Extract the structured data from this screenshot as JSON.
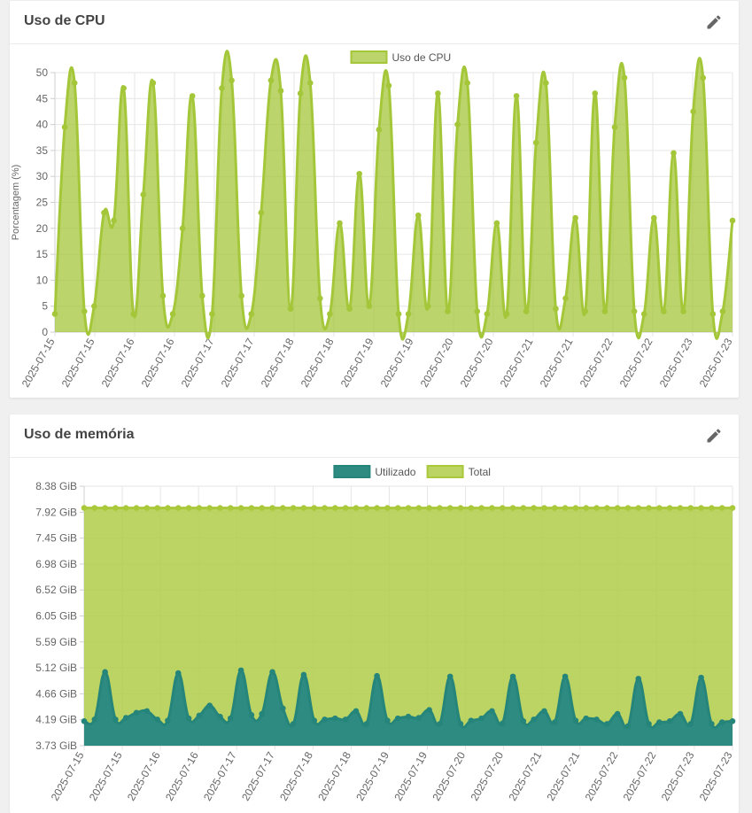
{
  "cpu_card": {
    "title": "Uso de CPU",
    "edit_icon": "pencil-icon"
  },
  "memory_card": {
    "title": "Uso de memória",
    "edit_icon": "pencil-icon"
  },
  "colors": {
    "cpu_line": "#a4c639",
    "cpu_fill": "rgba(164,198,57,0.75)",
    "mem_used_line": "#25857a",
    "mem_used_fill": "#2e8b82",
    "mem_total_line": "#a9c83a",
    "mem_total_fill": "rgba(176,204,72,0.85)"
  },
  "chart_data": [
    {
      "type": "area",
      "legend": [
        "Uso de CPU"
      ],
      "legend_position": "top",
      "ylabel": "Porcentagem (%)",
      "ylim": [
        0,
        50
      ],
      "yticks": [
        "0",
        "5",
        "10",
        "15",
        "20",
        "25",
        "30",
        "35",
        "40",
        "45",
        "50"
      ],
      "xticks": [
        "2025-07-15",
        "2025-07-15",
        "2025-07-16",
        "2025-07-16",
        "2025-07-17",
        "2025-07-17",
        "2025-07-18",
        "2025-07-18",
        "2025-07-19",
        "2025-07-19",
        "2025-07-20",
        "2025-07-20",
        "2025-07-21",
        "2025-07-21",
        "2025-07-22",
        "2025-07-22",
        "2025-07-23",
        "2025-07-23"
      ],
      "grid": true,
      "series": [
        {
          "name": "Uso de CPU",
          "values": [
            3.5,
            39.5,
            48,
            4,
            5,
            23,
            21.5,
            47,
            3.5,
            26.5,
            48,
            7,
            3.5,
            20,
            45.5,
            7,
            3.5,
            47,
            48.5,
            7,
            3.5,
            23,
            48.5,
            46.5,
            4.5,
            46,
            48,
            6.5,
            3.5,
            21,
            4.5,
            30.5,
            5,
            39,
            47.5,
            3.5,
            3.5,
            22.5,
            5,
            46,
            4,
            40,
            48,
            4,
            3.5,
            21,
            3.5,
            45.5,
            4,
            36.5,
            48,
            4.5,
            6.5,
            22,
            4,
            46,
            4,
            39.5,
            49,
            4,
            3.5,
            22,
            4,
            34.5,
            4,
            42.5,
            49,
            3.5,
            4,
            21.5
          ]
        }
      ]
    },
    {
      "type": "area",
      "legend": [
        "Utilizado",
        "Total"
      ],
      "legend_position": "top",
      "ylim": [
        3.73,
        8.38
      ],
      "yticks": [
        "3.73 GiB",
        "4.19 GiB",
        "4.66 GiB",
        "5.12 GiB",
        "5.59 GiB",
        "6.05 GiB",
        "6.52 GiB",
        "6.98 GiB",
        "7.45 GiB",
        "7.92 GiB",
        "8.38 GiB"
      ],
      "xticks": [
        "2025-07-15",
        "2025-07-15",
        "2025-07-16",
        "2025-07-16",
        "2025-07-17",
        "2025-07-17",
        "2025-07-18",
        "2025-07-18",
        "2025-07-19",
        "2025-07-19",
        "2025-07-20",
        "2025-07-20",
        "2025-07-21",
        "2025-07-21",
        "2025-07-22",
        "2025-07-22",
        "2025-07-23",
        "2025-07-23"
      ],
      "grid": true,
      "series": [
        {
          "name": "Utilizado",
          "values": [
            4.17,
            4.2,
            5.05,
            4.2,
            4.23,
            4.32,
            4.35,
            4.2,
            4.18,
            5.03,
            4.22,
            4.27,
            4.45,
            4.25,
            4.22,
            5.08,
            4.28,
            4.3,
            5.05,
            4.4,
            4.12,
            5.0,
            4.18,
            4.2,
            4.22,
            4.2,
            4.35,
            4.12,
            4.98,
            4.18,
            4.22,
            4.25,
            4.23,
            4.37,
            4.12,
            4.97,
            4.12,
            4.18,
            4.22,
            4.35,
            4.13,
            4.97,
            4.17,
            4.2,
            4.35,
            4.15,
            4.97,
            4.18,
            4.22,
            4.2,
            4.12,
            4.3,
            4.08,
            4.93,
            4.12,
            4.15,
            4.17,
            4.3,
            4.12,
            4.95,
            4.12,
            4.15,
            4.17
          ]
        },
        {
          "name": "Total",
          "values": [
            7.99,
            7.99,
            7.99,
            7.99,
            7.99,
            7.99,
            7.99,
            7.99,
            7.99,
            7.99,
            7.99,
            7.99,
            7.99,
            7.99,
            7.99,
            7.99,
            7.99,
            7.99,
            7.99,
            7.99,
            7.99,
            7.99,
            7.99,
            7.99,
            7.99,
            7.99,
            7.99,
            7.99,
            7.99,
            7.99,
            7.99,
            7.99,
            7.99,
            7.99,
            7.99,
            7.99,
            7.99,
            7.99,
            7.99,
            7.99,
            7.99,
            7.99,
            7.99,
            7.99,
            7.99,
            7.99,
            7.99,
            7.99,
            7.99,
            7.99,
            7.99,
            7.99,
            7.99,
            7.99,
            7.99,
            7.99,
            7.99,
            7.99,
            7.99,
            7.99,
            7.99,
            7.99,
            7.99
          ]
        }
      ]
    }
  ]
}
